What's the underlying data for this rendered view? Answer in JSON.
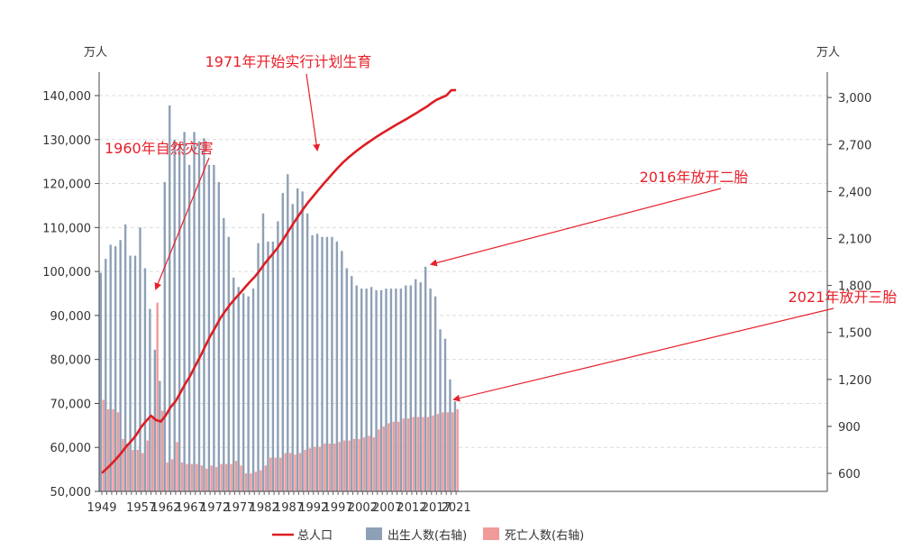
{
  "chart_data": {
    "type": "bar+line",
    "left_axis": {
      "unit": "万人",
      "range": [
        50000,
        140000
      ],
      "ticks": [
        "50,000",
        "60,000",
        "70,000",
        "80,000",
        "90,000",
        "100,000",
        "110,000",
        "120,000",
        "130,000",
        "140,000"
      ]
    },
    "right_axis": {
      "unit": "万人",
      "range": [
        485,
        3070
      ],
      "ticks": [
        "600",
        "900",
        "1,200",
        "1,500",
        "1,800",
        "2,100",
        "2,400",
        "2,700",
        "3,000"
      ]
    },
    "x_labels": [
      "1949",
      "1957",
      "1962",
      "1967",
      "1972",
      "1977",
      "1982",
      "1987",
      "1992",
      "1997",
      "2002",
      "2007",
      "2012",
      "2017",
      "2021"
    ],
    "x_label_years": [
      1949,
      1957,
      1962,
      1967,
      1972,
      1977,
      1982,
      1987,
      1992,
      1997,
      2002,
      2007,
      2012,
      2017,
      2021
    ],
    "years": [
      1949,
      1950,
      1951,
      1952,
      1953,
      1954,
      1955,
      1956,
      1957,
      1958,
      1959,
      1960,
      1961,
      1962,
      1963,
      1964,
      1965,
      1966,
      1967,
      1968,
      1969,
      1970,
      1971,
      1972,
      1973,
      1974,
      1975,
      1976,
      1977,
      1978,
      1979,
      1980,
      1981,
      1982,
      1983,
      1984,
      1985,
      1986,
      1987,
      1988,
      1989,
      1990,
      1991,
      1992,
      1993,
      1994,
      1995,
      1996,
      1997,
      1998,
      1999,
      2000,
      2001,
      2002,
      2003,
      2004,
      2005,
      2006,
      2007,
      2008,
      2009,
      2010,
      2011,
      2012,
      2013,
      2014,
      2015,
      2016,
      2017,
      2018,
      2019,
      2020,
      2021
    ],
    "series": [
      {
        "name": "总人口",
        "axis": "left",
        "kind": "line",
        "color": "#dc1e24",
        "values": [
          54167,
          55196,
          56300,
          57482,
          58796,
          60266,
          61465,
          62828,
          64653,
          65994,
          67207,
          66207,
          65859,
          67295,
          69172,
          70499,
          72538,
          74542,
          76368,
          78534,
          80671,
          82992,
          85229,
          87177,
          89211,
          90859,
          92420,
          93717,
          94974,
          96259,
          97542,
          98705,
          100072,
          101654,
          103008,
          104357,
          105851,
          107507,
          109300,
          111026,
          112704,
          114333,
          115823,
          117171,
          118517,
          119850,
          121121,
          122389,
          123626,
          124761,
          125786,
          126743,
          127627,
          128453,
          129227,
          129988,
          130756,
          131448,
          132129,
          132802,
          133450,
          134091,
          134735,
          135404,
          136072,
          136782,
          137462,
          138271,
          139008,
          139538,
          140005,
          141212,
          141260
        ]
      },
      {
        "name": "出生人数(右轴)",
        "axis": "right",
        "kind": "bar",
        "color": "#8ea0b6",
        "values": [
          1880,
          1970,
          2060,
          2050,
          2090,
          2190,
          1990,
          1990,
          2170,
          1910,
          1650,
          1390,
          1190,
          2460,
          2950,
          2730,
          2710,
          2780,
          2570,
          2780,
          2720,
          2740,
          2570,
          2570,
          2460,
          2230,
          2110,
          1850,
          1790,
          1750,
          1730,
          1780,
          2070,
          2260,
          2080,
          2080,
          2210,
          2390,
          2510,
          2320,
          2420,
          2400,
          2260,
          2120,
          2130,
          2110,
          2110,
          2110,
          2080,
          2020,
          1910,
          1860,
          1800,
          1780,
          1780,
          1790,
          1770,
          1770,
          1780,
          1780,
          1780,
          1780,
          1800,
          1800,
          1840,
          1820,
          1920,
          1780,
          1730,
          1520,
          1460,
          1200,
          1060
        ]
      },
      {
        "name": "死亡人数(右轴)",
        "axis": "right",
        "kind": "bar",
        "color": "#f09a9a",
        "values": [
          1070,
          1010,
          1010,
          990,
          820,
          790,
          750,
          750,
          730,
          810,
          950,
          1690,
          1000,
          670,
          690,
          800,
          670,
          660,
          660,
          660,
          650,
          630,
          650,
          640,
          660,
          660,
          660,
          680,
          650,
          600,
          600,
          610,
          620,
          650,
          700,
          700,
          700,
          730,
          730,
          720,
          730,
          750,
          760,
          770,
          770,
          790,
          790,
          790,
          800,
          810,
          810,
          820,
          820,
          830,
          840,
          830,
          880,
          900,
          920,
          930,
          930,
          950,
          950,
          960,
          960,
          960,
          960,
          970,
          980,
          990,
          990,
          990,
          1010
        ]
      }
    ],
    "annotations": [
      {
        "text": "1971年开始实行计划生育",
        "year": 1970,
        "target_axis": "right",
        "target_value": 2550
      },
      {
        "text": "1960年自然灾害",
        "year": 1960,
        "target_axis": "right",
        "target_value": 1690
      },
      {
        "text": "2016年放开二胎",
        "year": 2016,
        "target_axis": "right",
        "target_value": 1780
      },
      {
        "text": "2021年放开三胎",
        "year": 2021,
        "target_axis": "right",
        "target_value": 1030
      }
    ],
    "legend": {
      "position": "bottom-center",
      "items": [
        {
          "label": "总人口",
          "kind": "line",
          "color": "#dc1e24"
        },
        {
          "label": "出生人数(右轴)",
          "kind": "bar",
          "color": "#8ea0b6"
        },
        {
          "label": "死亡人数(右轴)",
          "kind": "bar",
          "color": "#f09a9a"
        }
      ]
    },
    "grid": "horizontal-dashed"
  }
}
